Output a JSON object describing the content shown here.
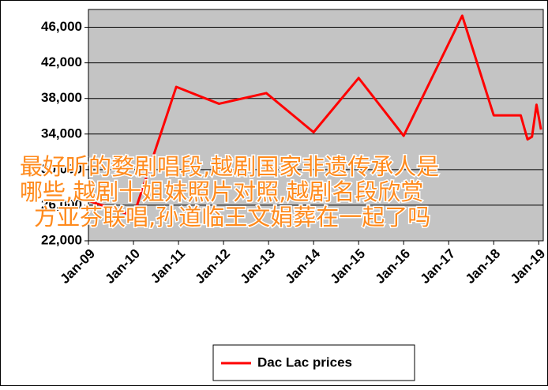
{
  "chart_data": {
    "type": "line",
    "x": [
      2009.0,
      2010.0,
      2010.95,
      2011.9,
      2012.95,
      2014.0,
      2015.0,
      2016.0,
      2017.3,
      2018.0,
      2018.6,
      2018.75,
      2018.85,
      2018.95,
      2019.05
    ],
    "series": [
      {
        "name": "Dac Lac prices",
        "color": "#ff0000",
        "values": [
          26500,
          24800,
          39300,
          37400,
          38600,
          34200,
          40300,
          33800,
          47300,
          36100,
          36100,
          33400,
          33700,
          37300,
          34500
        ]
      }
    ],
    "xlim": [
      2009.0,
      2019.1
    ],
    "xticks": [
      {
        "value": 2009,
        "label": "Jan-09"
      },
      {
        "value": 2010,
        "label": "Jan-10"
      },
      {
        "value": 2011,
        "label": "Jan-11"
      },
      {
        "value": 2012,
        "label": "Jan-12"
      },
      {
        "value": 2013,
        "label": "Jan-13"
      },
      {
        "value": 2014,
        "label": "Jan-14"
      },
      {
        "value": 2015,
        "label": "Jan-15"
      },
      {
        "value": 2016,
        "label": "Jan-16"
      },
      {
        "value": 2017,
        "label": "Jan-17"
      },
      {
        "value": 2018,
        "label": "Jan-18"
      },
      {
        "value": 2019,
        "label": "Jan-19"
      }
    ],
    "ylim": [
      22000,
      48000
    ],
    "yticks": [
      {
        "value": 22000,
        "label": "22,000"
      },
      {
        "value": 26000,
        "label": "26,000"
      },
      {
        "value": 30000,
        "label": "30,000"
      },
      {
        "value": 34000,
        "label": "34,000"
      },
      {
        "value": 38000,
        "label": "38,000"
      },
      {
        "value": 42000,
        "label": "42,000"
      },
      {
        "value": 46000,
        "label": "46,000"
      }
    ],
    "grid": true,
    "legend": "bottom",
    "annotations": [
      "最好听的婺剧唱段,越剧国家非遗传承人是",
      "哪些,越剧十姐妹照片对照,越剧名段欣赏",
      "方亚芬联唱,孙道临王文娟葬在一起了吗"
    ]
  }
}
